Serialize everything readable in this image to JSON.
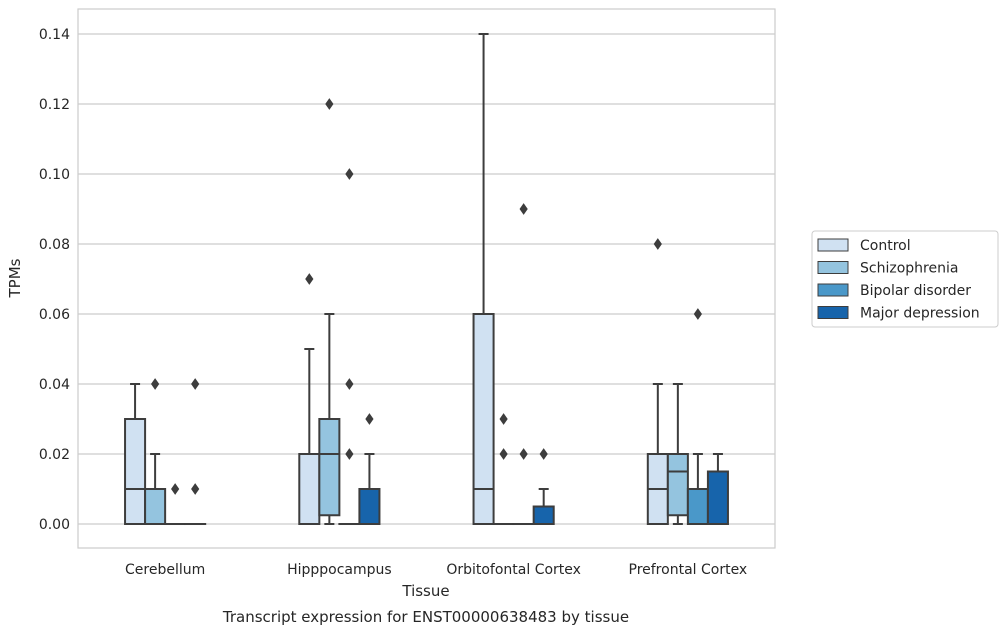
{
  "chart_data": {
    "type": "box",
    "caption": "Transcript expression for ENST00000638483 by tissue",
    "xlabel": "Tissue",
    "ylabel": "TPMs",
    "ylim": [
      -0.007,
      0.147
    ],
    "yticks": [
      "0.00",
      "0.02",
      "0.04",
      "0.06",
      "0.08",
      "0.10",
      "0.12",
      "0.14"
    ],
    "grid": true,
    "legend_position": "right",
    "categories": [
      "Cerebellum",
      "Hipppocampus",
      "Orbitofontal Cortex",
      "Prefrontal Cortex"
    ],
    "series": [
      {
        "name": "Control",
        "color": "#d0e1f2",
        "boxes": [
          {
            "q1": 0,
            "median": 0.01,
            "q3": 0.03,
            "whisker_low": 0,
            "whisker_high": 0.04,
            "outliers": []
          },
          {
            "q1": 0,
            "median": 0.02,
            "q3": 0.02,
            "whisker_low": 0,
            "whisker_high": 0.05,
            "outliers": [
              0.07
            ]
          },
          {
            "q1": 0,
            "median": 0.01,
            "q3": 0.06,
            "whisker_low": 0,
            "whisker_high": 0.14,
            "outliers": []
          },
          {
            "q1": 0,
            "median": 0.01,
            "q3": 0.02,
            "whisker_low": 0,
            "whisker_high": 0.04,
            "outliers": [
              0.08
            ]
          }
        ]
      },
      {
        "name": "Schizophrenia",
        "color": "#94c4df",
        "boxes": [
          {
            "q1": 0,
            "median": 0.01,
            "q3": 0.01,
            "whisker_low": 0,
            "whisker_high": 0.02,
            "outliers": [
              0.04
            ]
          },
          {
            "q1": 0.0025,
            "median": 0.02,
            "q3": 0.03,
            "whisker_low": 0,
            "whisker_high": 0.06,
            "outliers": [
              0.12
            ]
          },
          {
            "q1": 0,
            "median": 0,
            "q3": 0,
            "whisker_low": 0,
            "whisker_high": 0,
            "outliers": [
              0.02,
              0.03
            ]
          },
          {
            "q1": 0.0025,
            "median": 0.015,
            "q3": 0.02,
            "whisker_low": 0,
            "whisker_high": 0.04,
            "outliers": []
          }
        ]
      },
      {
        "name": "Bipolar disorder",
        "color": "#4a98c9",
        "boxes": [
          {
            "q1": 0,
            "median": 0,
            "q3": 0,
            "whisker_low": 0,
            "whisker_high": 0,
            "outliers": [
              0.01
            ]
          },
          {
            "q1": 0,
            "median": 0,
            "q3": 0,
            "whisker_low": 0,
            "whisker_high": 0,
            "outliers": [
              0.02,
              0.04,
              0.1
            ]
          },
          {
            "q1": 0,
            "median": 0,
            "q3": 0,
            "whisker_low": 0,
            "whisker_high": 0,
            "outliers": [
              0.02,
              0.09
            ]
          },
          {
            "q1": 0,
            "median": 0,
            "q3": 0.01,
            "whisker_low": 0,
            "whisker_high": 0.02,
            "outliers": [
              0.06
            ]
          }
        ]
      },
      {
        "name": "Major depression",
        "color": "#1764ab",
        "boxes": [
          {
            "q1": 0,
            "median": 0,
            "q3": 0,
            "whisker_low": 0,
            "whisker_high": 0,
            "outliers": [
              0.01,
              0.04
            ]
          },
          {
            "q1": 0,
            "median": 0,
            "q3": 0.01,
            "whisker_low": 0,
            "whisker_high": 0.02,
            "outliers": [
              0.03
            ]
          },
          {
            "q1": 0,
            "median": 0,
            "q3": 0.005,
            "whisker_low": 0,
            "whisker_high": 0.01,
            "outliers": [
              0.02
            ]
          },
          {
            "q1": 0,
            "median": 0,
            "q3": 0.015,
            "whisker_low": 0,
            "whisker_high": 0.02,
            "outliers": []
          }
        ]
      }
    ]
  }
}
